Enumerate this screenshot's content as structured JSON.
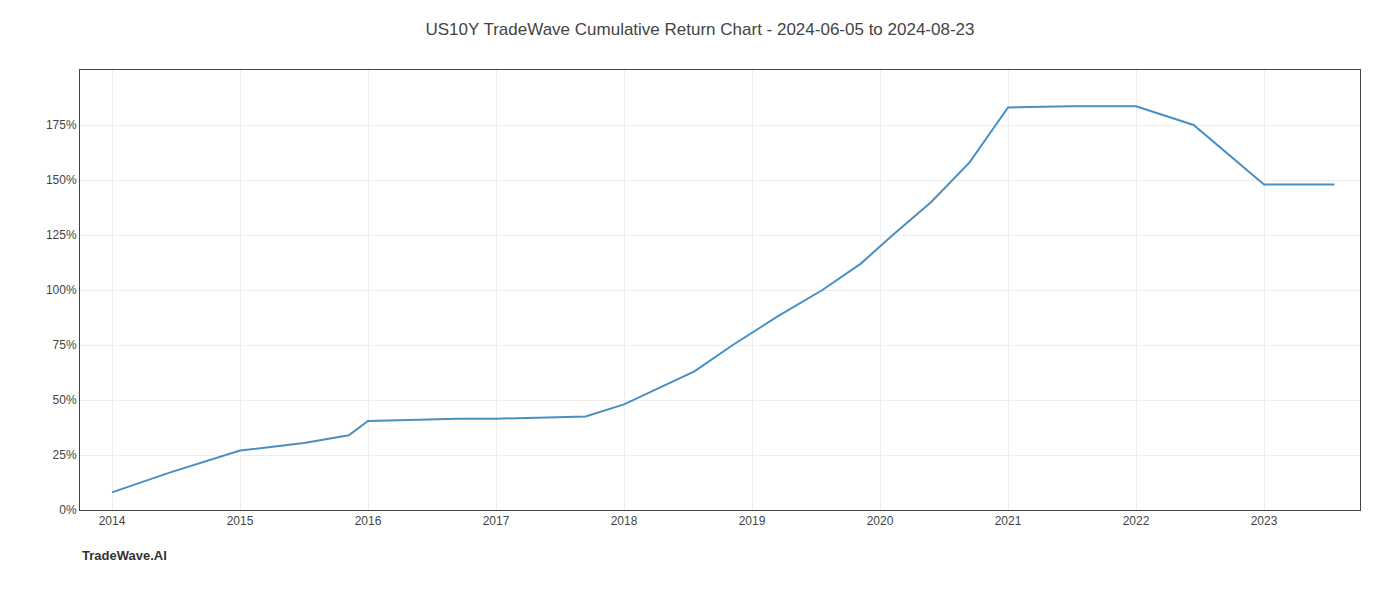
{
  "chart_data": {
    "type": "line",
    "title": "US10Y TradeWave Cumulative Return Chart - 2024-06-05 to 2024-08-23",
    "annotations": [
      "TradeWave.AI"
    ],
    "x": [
      2014.0,
      2014.45,
      2015.0,
      2015.5,
      2015.85,
      2016.0,
      2016.4,
      2016.7,
      2017.0,
      2017.3,
      2017.7,
      2018.0,
      2018.15,
      2018.55,
      2018.85,
      2019.2,
      2019.55,
      2019.85,
      2020.1,
      2020.4,
      2020.7,
      2021.0,
      2021.5,
      2022.0,
      2022.45,
      2023.0,
      2023.55
    ],
    "values": [
      8.0,
      17.0,
      27.0,
      30.5,
      34.0,
      40.5,
      41.0,
      41.5,
      41.5,
      42.0,
      42.5,
      48.0,
      52.0,
      63.0,
      75.0,
      88.0,
      100.0,
      112.0,
      125.0,
      140.0,
      158.0,
      183.0,
      183.5,
      183.5,
      175.0,
      148.0,
      148.0
    ],
    "color": "#4a8fc2",
    "xlim": [
      2013.75,
      2023.75
    ],
    "xticks": [
      2014,
      2015,
      2016,
      2017,
      2018,
      2019,
      2020,
      2021,
      2022,
      2023
    ],
    "ylim": [
      0,
      200
    ],
    "yticks": [
      {
        "value": 0,
        "label": "0%"
      },
      {
        "value": 25,
        "label": "25%"
      },
      {
        "value": 50,
        "label": "50%"
      },
      {
        "value": 75,
        "label": "75%"
      },
      {
        "value": 100,
        "label": "100%"
      },
      {
        "value": 125,
        "label": "125%"
      },
      {
        "value": 150,
        "label": "150%"
      },
      {
        "value": 175,
        "label": "175%"
      }
    ],
    "grid": true
  }
}
